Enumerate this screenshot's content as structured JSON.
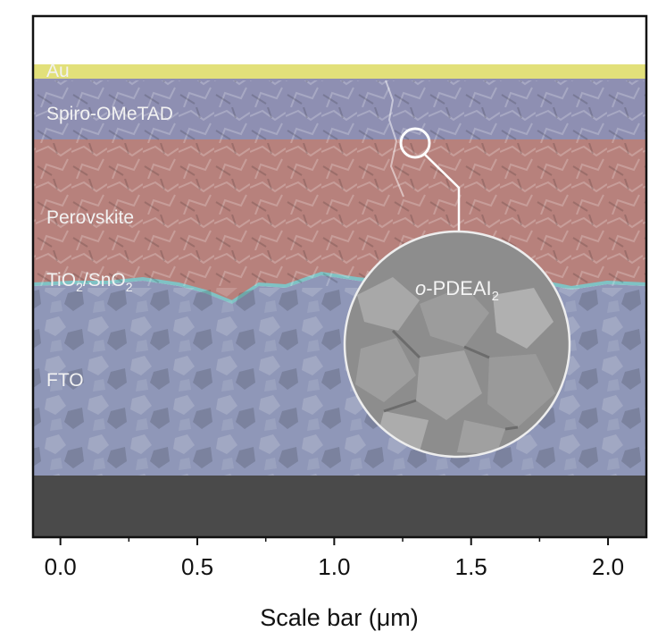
{
  "layers": [
    {
      "label": "Au",
      "color": "#e2e07a"
    },
    {
      "label": "Spiro-OMeTAD",
      "color": "#8e8fb2"
    },
    {
      "label": "Perovskite",
      "color": "#b7817c"
    },
    {
      "label": "TiO",
      "color": "#7fc2c4"
    },
    {
      "label": "FTO",
      "color": "#8f97b8"
    },
    {
      "label": "",
      "color": "#4a4a4a"
    }
  ],
  "tio2_label": {
    "part1": "TiO",
    "sub1": "2",
    "slash": "/SnO",
    "sub2": "2"
  },
  "inset": {
    "prefix": "o",
    "name": "-PDEAI",
    "sub": "2"
  },
  "axis": {
    "label": "Scale bar (μm)",
    "ticks": [
      "0.0",
      "0.5",
      "1.0",
      "1.5",
      "2.0"
    ],
    "tick_values": [
      0.0,
      0.5,
      1.0,
      1.5,
      2.0
    ],
    "range": [
      -0.1,
      2.14
    ]
  }
}
